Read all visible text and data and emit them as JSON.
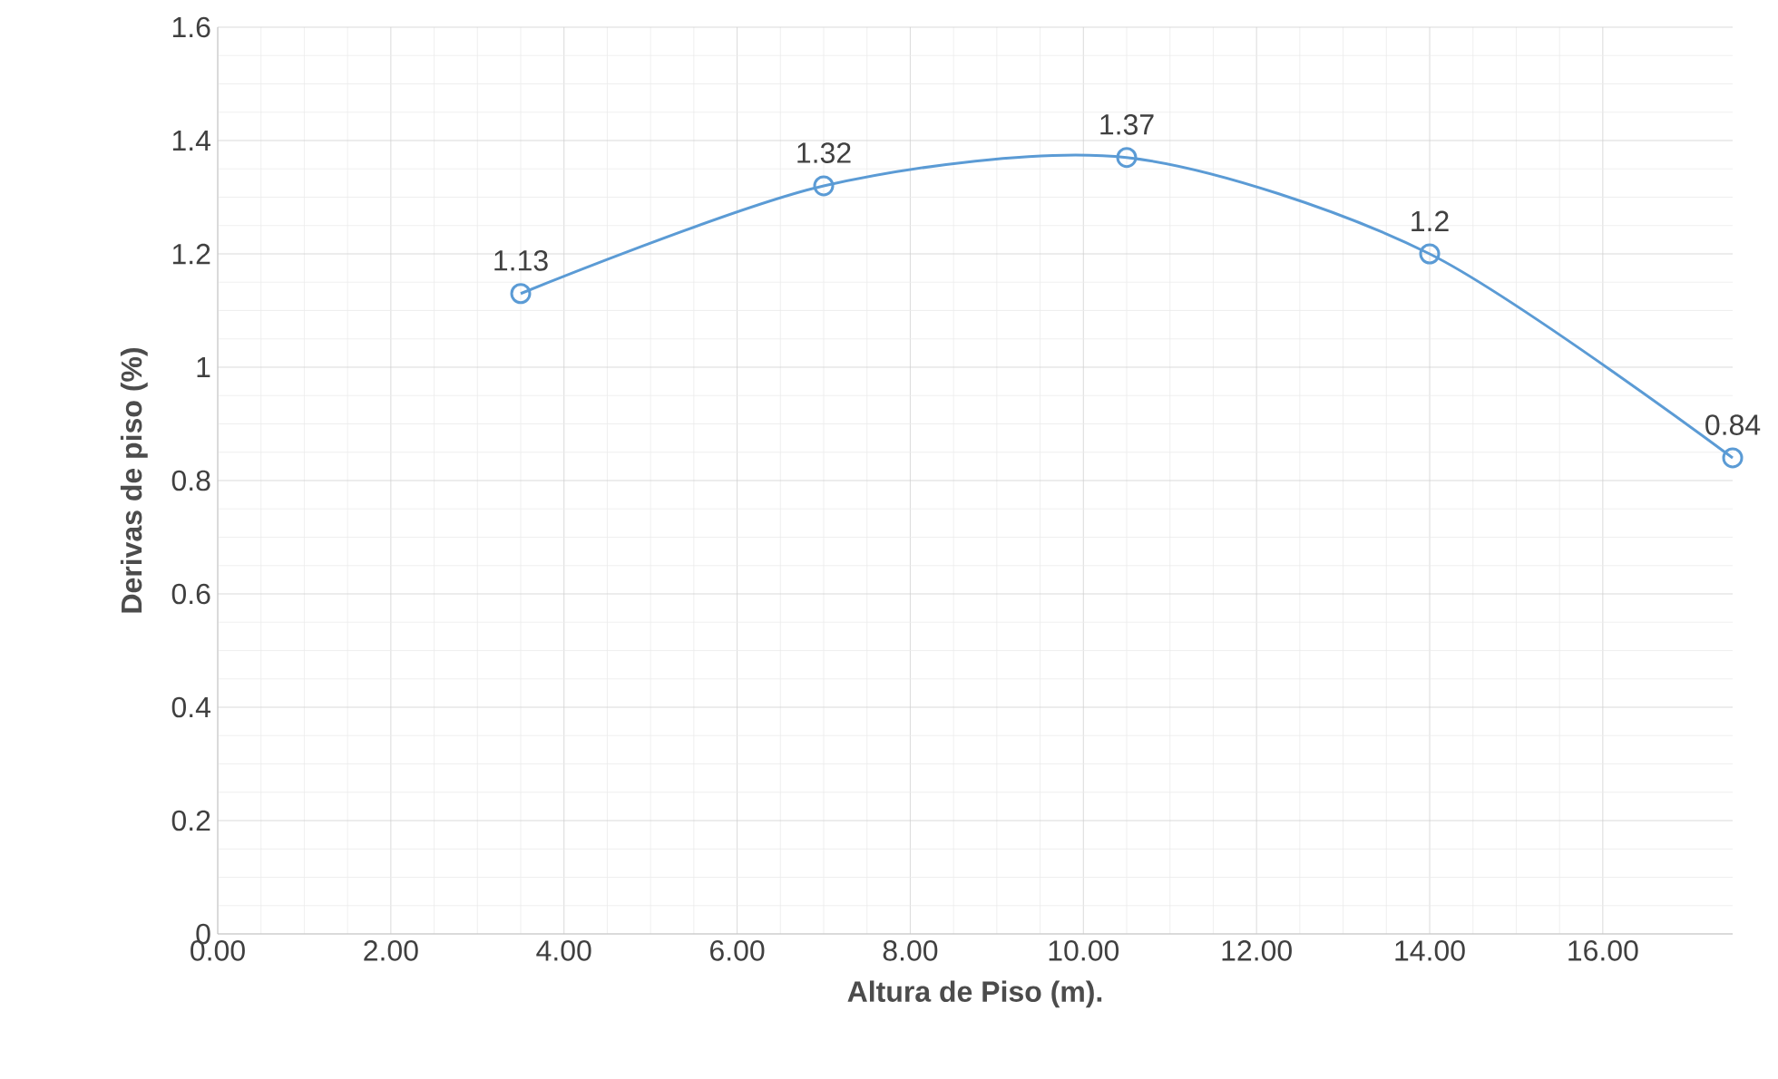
{
  "chart_data": {
    "type": "line",
    "xlabel": "Altura de Piso (m).",
    "ylabel": "Derivas de piso (%)",
    "x": [
      3.5,
      7,
      10.5,
      14,
      17.5
    ],
    "series": [
      {
        "color": "#5b9bd5",
        "values": [
          1.13,
          1.32,
          1.37,
          1.2,
          0.84
        ]
      }
    ],
    "xlim": [
      0,
      17.5
    ],
    "ylim": [
      0,
      1.6
    ],
    "xticks": [
      {
        "value": 0,
        "label": "0.00"
      },
      {
        "value": 2,
        "label": "2.00"
      },
      {
        "value": 4,
        "label": "4.00"
      },
      {
        "value": 6,
        "label": "6.00"
      },
      {
        "value": 8,
        "label": "8.00"
      },
      {
        "value": 10,
        "label": "10.00"
      },
      {
        "value": 12,
        "label": "12.00"
      },
      {
        "value": 14,
        "label": "14.00"
      },
      {
        "value": 16,
        "label": "16.00"
      }
    ],
    "yticks": [
      0,
      0.2,
      0.4,
      0.6,
      0.8,
      1,
      1.2,
      1.4,
      1.6
    ],
    "grid": true,
    "marker": "circle",
    "line_style": "solid",
    "data_labels": true
  }
}
